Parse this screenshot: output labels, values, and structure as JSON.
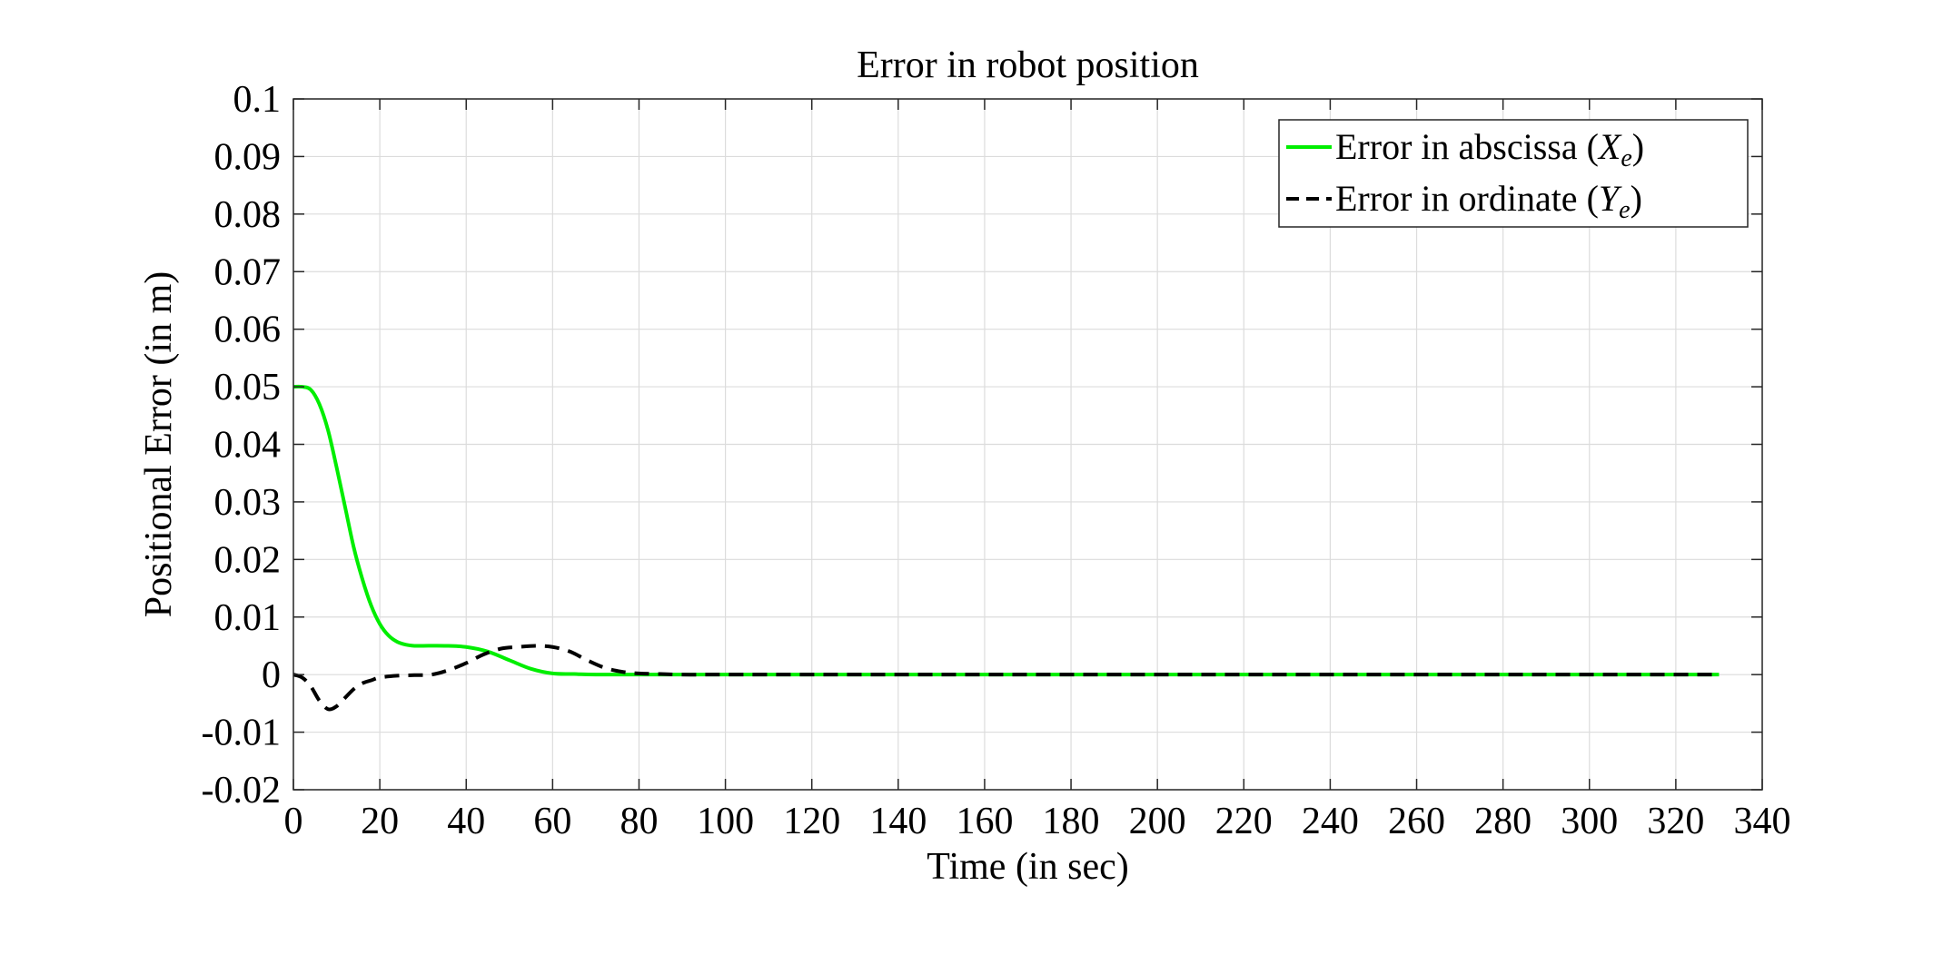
{
  "chart_data": {
    "type": "line",
    "title": "Error in robot position",
    "xlabel": "Time (in sec)",
    "ylabel": "Positional Error (in m)",
    "xlim": [
      0,
      340
    ],
    "ylim": [
      -0.02,
      0.1
    ],
    "xticks": [
      "0",
      "20",
      "40",
      "60",
      "80",
      "100",
      "120",
      "140",
      "160",
      "180",
      "200",
      "220",
      "240",
      "260",
      "280",
      "300",
      "320",
      "340"
    ],
    "yticks": [
      "-0.02",
      "-0.01",
      "0",
      "0.01",
      "0.02",
      "0.03",
      "0.04",
      "0.05",
      "0.06",
      "0.07",
      "0.08",
      "0.09",
      "0.1"
    ],
    "grid": true,
    "legend_position": "top-right",
    "series": [
      {
        "name": "Error in abscissa (X_e)",
        "legend_prefix": "Error in abscissa (",
        "legend_var": "X",
        "legend_sub": "e",
        "legend_suffix": ")",
        "color": "#00ee00",
        "style": "solid",
        "x": [
          0,
          2,
          4,
          6,
          8,
          10,
          12,
          14,
          16,
          18,
          20,
          22,
          24,
          26,
          28,
          30,
          35,
          40,
          45,
          50,
          55,
          60,
          65,
          70,
          80,
          100,
          150,
          200,
          250,
          300,
          330
        ],
        "y": [
          0.05,
          0.05,
          0.0495,
          0.047,
          0.0425,
          0.036,
          0.029,
          0.022,
          0.0165,
          0.012,
          0.0088,
          0.0068,
          0.0057,
          0.0052,
          0.005,
          0.005,
          0.005,
          0.0048,
          0.004,
          0.0025,
          0.001,
          0.0002,
          0.0001,
          0.0,
          0.0,
          0.0,
          0.0,
          0.0,
          0.0,
          0.0,
          0.0
        ]
      },
      {
        "name": "Error in ordinate (Y_e)",
        "legend_prefix": "Error in ordinate (",
        "legend_var": "Y",
        "legend_sub": "e",
        "legend_suffix": ")",
        "color": "#000000",
        "style": "dashed",
        "x": [
          0,
          2,
          4,
          6,
          8,
          10,
          12,
          14,
          16,
          18,
          20,
          24,
          28,
          32,
          36,
          40,
          44,
          48,
          52,
          56,
          60,
          64,
          68,
          72,
          76,
          80,
          85,
          90,
          100,
          150,
          200,
          250,
          300,
          330
        ],
        "y": [
          0.0,
          -0.0005,
          -0.002,
          -0.0045,
          -0.006,
          -0.0055,
          -0.004,
          -0.0025,
          -0.0015,
          -0.001,
          -0.0005,
          -0.0002,
          -0.0001,
          0.0,
          0.0008,
          0.002,
          0.0035,
          0.0045,
          0.0048,
          0.005,
          0.0048,
          0.004,
          0.0025,
          0.0012,
          0.0005,
          0.0002,
          0.0001,
          0.0,
          0.0,
          0.0,
          0.0,
          0.0,
          0.0,
          0.0
        ]
      }
    ]
  }
}
